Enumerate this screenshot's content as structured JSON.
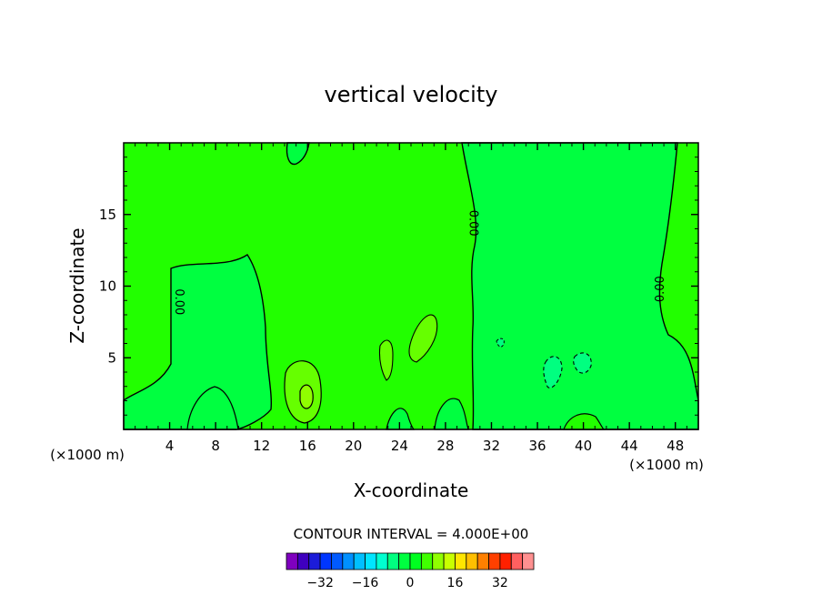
{
  "chart_data": {
    "type": "heatmap",
    "title": "vertical velocity",
    "xlabel": "X-coordinate",
    "ylabel": "Z-coordinate",
    "x_unit_left": "(×1000 m)",
    "x_unit_right": "(×1000 m)",
    "xlim": [
      0,
      50
    ],
    "ylim": [
      0,
      20
    ],
    "xticks": [
      4,
      8,
      12,
      16,
      20,
      24,
      28,
      32,
      36,
      40,
      44,
      48
    ],
    "yticks": [
      5,
      10,
      15
    ],
    "contour_interval_text": "CONTOUR INTERVAL = 4.000E+00",
    "contour_labels": [
      {
        "text": "0.00",
        "x": 4.5,
        "z": 8.9
      },
      {
        "text": "0.00",
        "x": 30.1,
        "z": 14.4
      },
      {
        "text": "0.00",
        "x": 47.0,
        "z": 9.8
      }
    ],
    "colorbar": {
      "levels": [
        -36,
        -32,
        -28,
        -24,
        -20,
        -16,
        -12,
        -8,
        -4,
        0,
        4,
        8,
        12,
        16,
        20,
        24,
        28,
        32,
        36
      ],
      "colors": [
        "#7f00bf",
        "#3f00bf",
        "#1c1cd9",
        "#0036ff",
        "#005aff",
        "#0090ff",
        "#00bfff",
        "#00e5ff",
        "#00ffd0",
        "#00ff80",
        "#00ff40",
        "#00ff20",
        "#40ff00",
        "#90ff00",
        "#c8ff00",
        "#ffe600",
        "#ffbf00",
        "#ff8000",
        "#ff4000",
        "#ff2000",
        "#ff6060",
        "#ff9090"
      ],
      "tick_labels": [
        "-32",
        "-16",
        "0",
        "16",
        "32"
      ],
      "tick_values": [
        -32,
        -16,
        0,
        16,
        32
      ]
    },
    "colors": {
      "zero_band": "#00ff40",
      "positive_weak": "#22ff00",
      "positive_mid": "#66ff00",
      "negative_weak": "#00ff80"
    }
  }
}
